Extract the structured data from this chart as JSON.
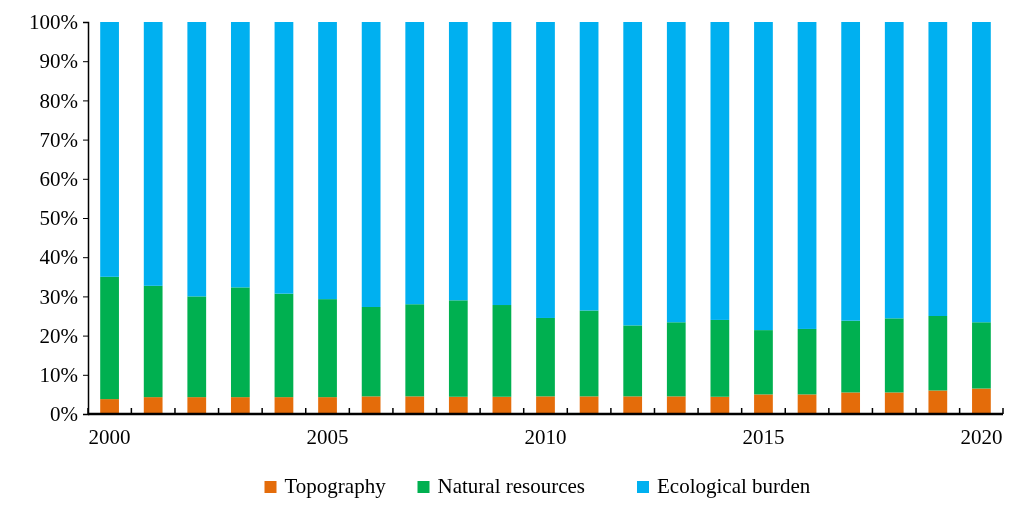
{
  "chart_data": {
    "type": "bar",
    "stacked": true,
    "categories": [
      "2000",
      null,
      null,
      null,
      null,
      "2005",
      null,
      null,
      null,
      null,
      "2010",
      null,
      null,
      null,
      null,
      "2015",
      null,
      null,
      null,
      null,
      "2020"
    ],
    "series": [
      {
        "name": "Topography",
        "color": "#e46c0a",
        "values": [
          3.8,
          4.3,
          4.3,
          4.3,
          4.3,
          4.3,
          4.5,
          4.5,
          4.4,
          4.4,
          4.5,
          4.5,
          4.5,
          4.5,
          4.4,
          5.0,
          5.0,
          5.5,
          5.5,
          6.0,
          6.5
        ]
      },
      {
        "name": "Natural resources",
        "color": "#00b050",
        "values": [
          31.2,
          28.4,
          25.7,
          28.0,
          26.4,
          25.0,
          22.8,
          23.5,
          24.6,
          23.4,
          20.0,
          21.9,
          18.1,
          18.9,
          19.6,
          16.4,
          16.7,
          18.3,
          18.9,
          19.0,
          16.9
        ]
      },
      {
        "name": "Ecological burden",
        "color": "#00b0f0",
        "values": [
          65.0,
          67.3,
          70.0,
          67.7,
          69.3,
          70.7,
          72.7,
          72.0,
          71.0,
          72.2,
          75.5,
          73.6,
          77.4,
          76.6,
          76.0,
          78.6,
          78.3,
          76.2,
          75.6,
          75.0,
          76.6
        ]
      }
    ],
    "ylim": [
      0,
      100
    ],
    "yticks": [
      {
        "value": 0,
        "label": "0%"
      },
      {
        "value": 10,
        "label": "10%"
      },
      {
        "value": 20,
        "label": "20%"
      },
      {
        "value": 30,
        "label": "30%"
      },
      {
        "value": 40,
        "label": "40%"
      },
      {
        "value": 50,
        "label": "50%"
      },
      {
        "value": 60,
        "label": "60%"
      },
      {
        "value": 70,
        "label": "70%"
      },
      {
        "value": 80,
        "label": "80%"
      },
      {
        "value": 90,
        "label": "90%"
      },
      {
        "value": 100,
        "label": "100%"
      }
    ],
    "grid": false,
    "legend": "bottom"
  }
}
